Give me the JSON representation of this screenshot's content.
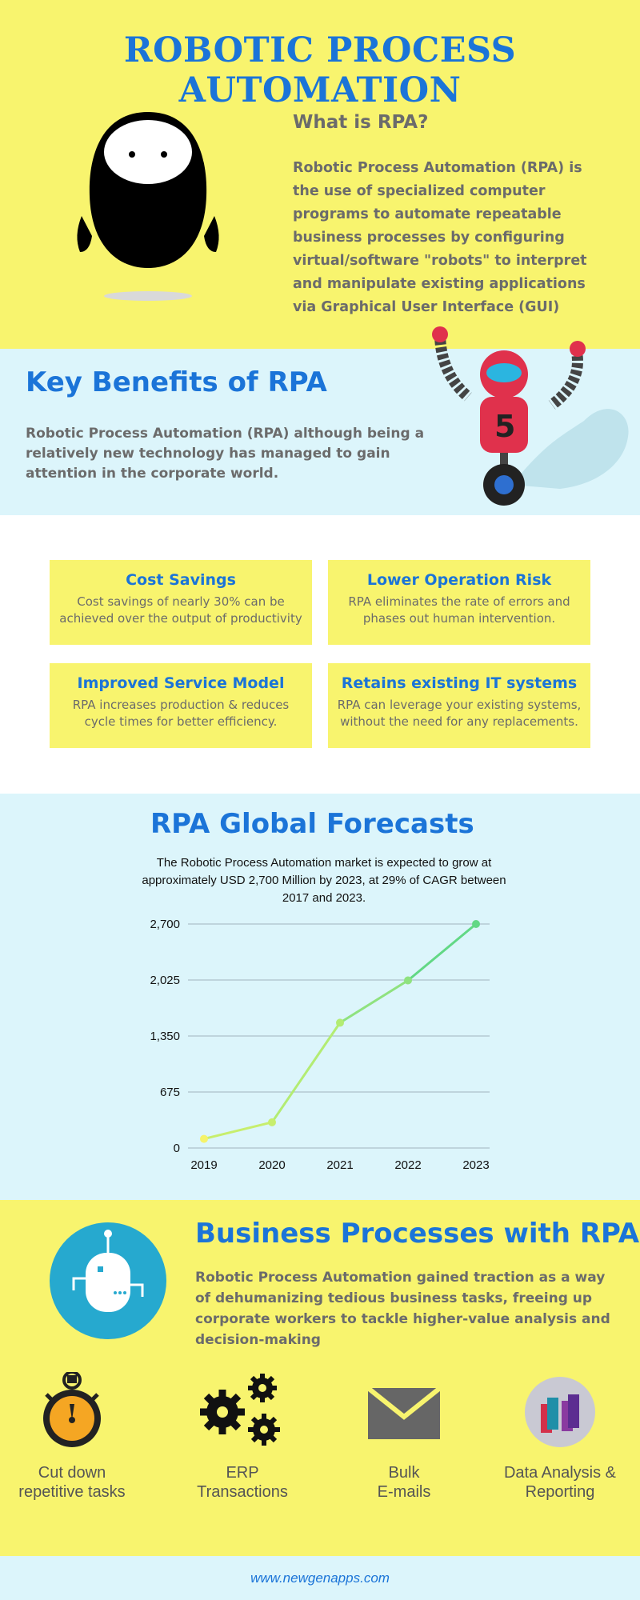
{
  "header": {
    "title": "ROBOTIC PROCESS AUTOMATION"
  },
  "what_is": {
    "heading": "What is RPA?",
    "text": "Robotic Process Automation (RPA) is the use of specialized computer programs to automate repeatable business processes by configuring virtual/software \"robots\" to interpret and manipulate existing applications via Graphical User Interface (GUI)"
  },
  "key_benefits": {
    "heading": "Key Benefits of RPA",
    "text": "Robotic Process Automation (RPA) although being a relatively new technology has managed to gain attention in the corporate world."
  },
  "benefits": [
    {
      "title": "Cost Savings",
      "text": "Cost savings of nearly 30% can be achieved over the output of productivity"
    },
    {
      "title": "Lower Operation Risk",
      "text": "RPA eliminates the rate of errors and phases out human intervention."
    },
    {
      "title": "Improved Service Model",
      "text": "RPA increases production & reduces cycle times for better efficiency."
    },
    {
      "title": "Retains existing IT systems",
      "text": "RPA can leverage your existing systems, without the need for any replacements."
    }
  ],
  "forecast": {
    "heading": "RPA Global Forecasts",
    "description": "The Robotic Process Automation market is expected to grow at approximately USD 2,700 Million by 2023, at 29% of CAGR between 2017 and 2023."
  },
  "chart_data": {
    "type": "line",
    "categories": [
      "2019",
      "2020",
      "2021",
      "2022",
      "2023"
    ],
    "values": [
      110,
      310,
      1510,
      2020,
      2700
    ],
    "yticks": [
      "0",
      "675",
      "1,350",
      "2,025",
      "2,700"
    ],
    "ylim": [
      0,
      2700
    ],
    "grid": true,
    "colors": [
      "#f5f36a",
      "#c7ee6d",
      "#b3ec73",
      "#8fe27f",
      "#62d885"
    ]
  },
  "business": {
    "heading": "Business Processes with RPA",
    "text": "Robotic Process Automation gained traction as a way of dehumanizing tedious business tasks, freeing up corporate workers to tackle higher-value analysis and decision-making"
  },
  "features": [
    {
      "icon": "stopwatch-icon",
      "line1": "Cut down",
      "line2": "repetitive tasks"
    },
    {
      "icon": "gears-icon",
      "line1": "ERP",
      "line2": "Transactions"
    },
    {
      "icon": "envelope-icon",
      "line1": "Bulk",
      "line2": "E-mails"
    },
    {
      "icon": "bar-chart-icon",
      "line1": "Data Analysis &",
      "line2": "Reporting"
    }
  ],
  "footer": {
    "url": "www.newgenapps.com"
  },
  "colors": {
    "yellow": "#f8f46e",
    "light_blue": "#dcf5fb",
    "accent_blue": "#1b74d8"
  }
}
